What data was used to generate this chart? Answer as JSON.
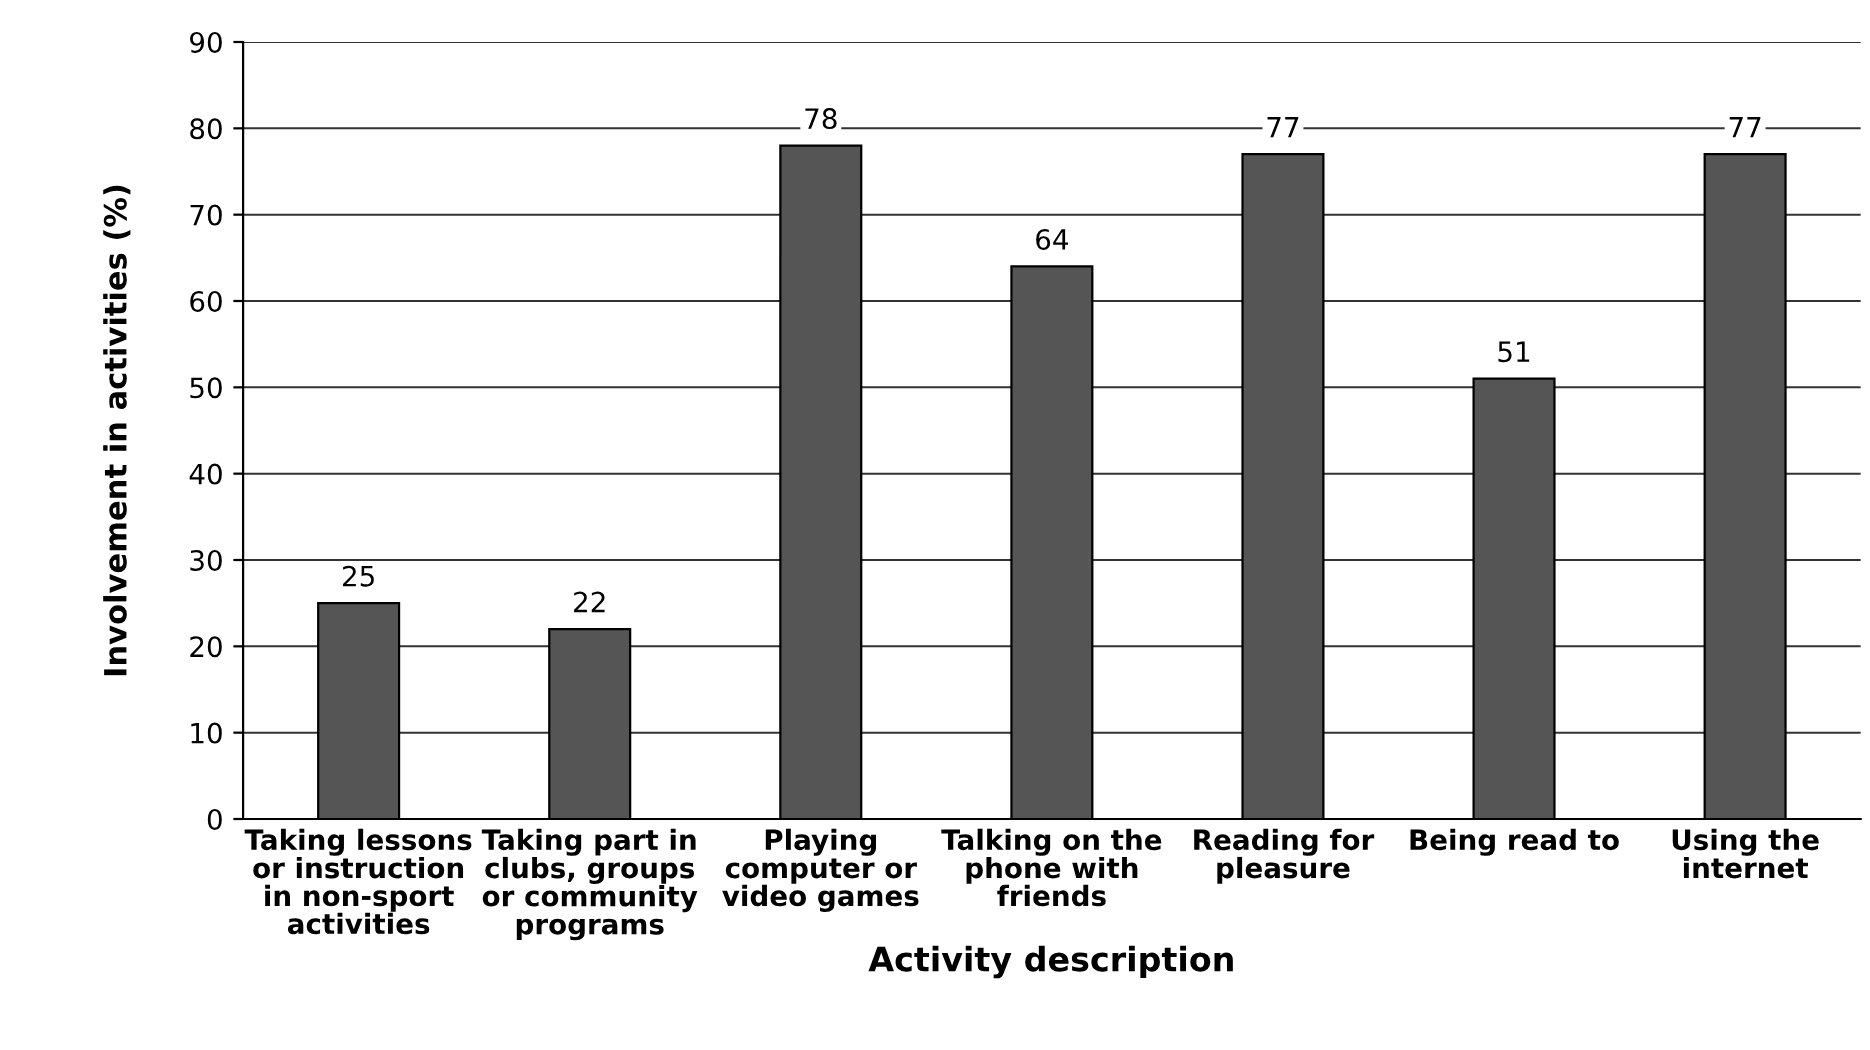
{
  "chart_data": {
    "type": "bar",
    "xlabel": "Activity description",
    "ylabel": "Involvement in activities (%)",
    "categories": [
      "Taking lessons\nor instruction\nin non-sport\nactivities",
      "Taking part in\nclubs, groups\nor community\nprograms",
      "Playing\ncomputer or\nvideo games",
      "Talking on the\nphone with\nfriends",
      "Reading for\npleasure",
      "Being read to",
      "Using the\ninternet"
    ],
    "values": [
      25,
      22,
      78,
      64,
      77,
      51,
      77
    ],
    "color": "#555555",
    "ylim": [
      0,
      90
    ],
    "yticks": [
      0,
      10,
      20,
      30,
      40,
      50,
      60,
      70,
      80,
      90
    ],
    "grid": "y",
    "data_labels": true
  }
}
